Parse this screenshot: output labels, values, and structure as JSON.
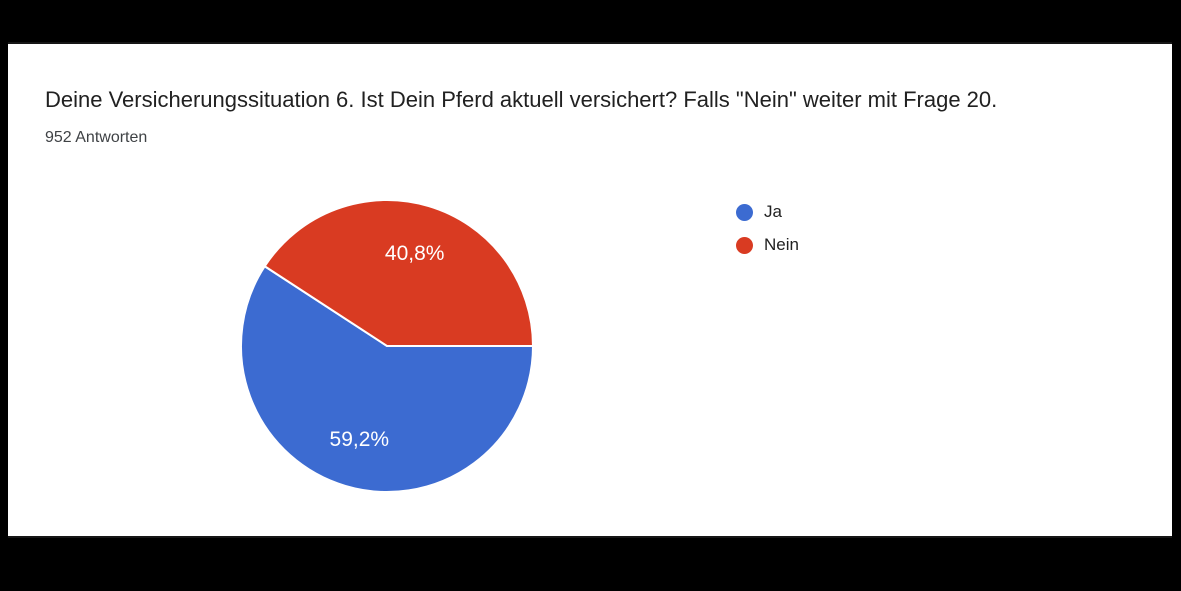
{
  "window": {
    "letterbox_color": "#000000",
    "panel_background": "#ffffff"
  },
  "header": {
    "title": "Deine Versicherungssituation 6. Ist Dein Pferd aktuell versichert? Falls \"Nein\" weiter mit Frage 20.",
    "responses_count": "952 Antworten"
  },
  "chart_data": {
    "type": "pie",
    "title": "Deine Versicherungssituation 6. Ist Dein Pferd aktuell versichert? Falls \"Nein\" weiter mit Frage 20.",
    "subtitle": "952 Antworten",
    "categories": [
      "Ja",
      "Nein"
    ],
    "values": [
      59.2,
      40.8
    ],
    "value_labels": [
      "59,2%",
      "40,8%"
    ],
    "colors": [
      "#3C6BD1",
      "#D93B22"
    ],
    "slice_border_color": "#ffffff",
    "label_text_color": "#ffffff",
    "legend_position": "right",
    "start_angle_deg": 0,
    "direction": "clockwise"
  },
  "legend": {
    "items": [
      {
        "label": "Ja",
        "color": "#3C6BD1"
      },
      {
        "label": "Nein",
        "color": "#D93B22"
      }
    ]
  }
}
